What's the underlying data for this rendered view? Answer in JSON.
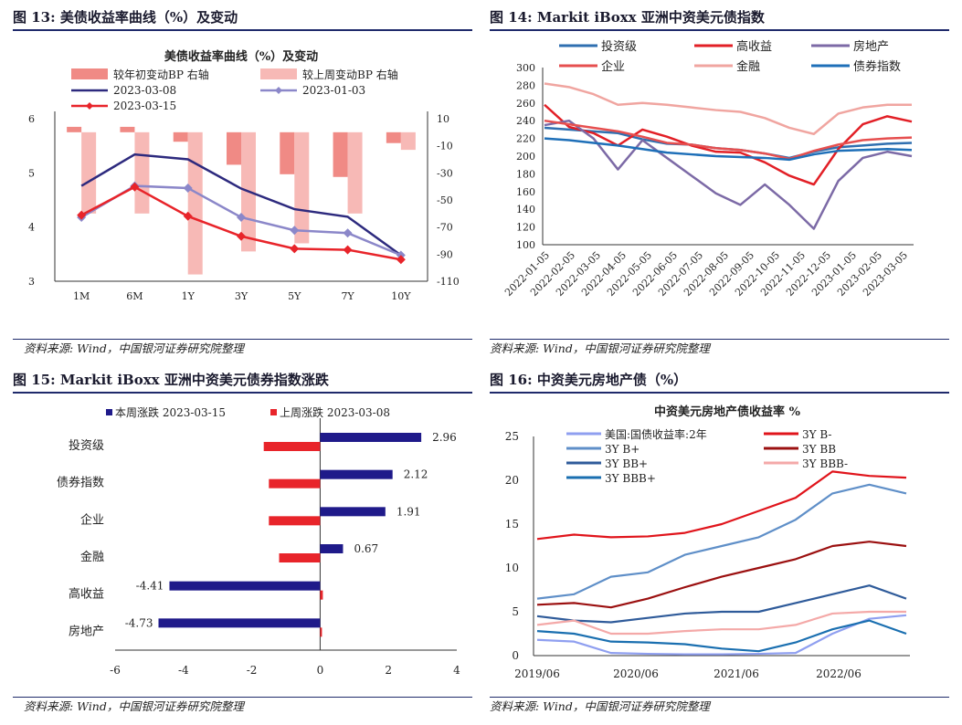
{
  "panels": {
    "p13": {
      "title": "图 13:  美债收益率曲线（%）及变动",
      "source": "资料来源: Wind，中国银河证券研究院整理"
    },
    "p14": {
      "title": "图 14:  Markit iBoxx 亚洲中资美元债指数",
      "source": "资料来源: Wind，中国银河证券研究院整理"
    },
    "p15": {
      "title": "图 15:  Markit iBoxx 亚洲中资美元债券指数涨跌",
      "source": "资料来源: Wind，中国银河证券研究院整理"
    },
    "p16": {
      "title": "图 16:  中资美元房地产债（%）",
      "source": "资料来源: Wind，中国银河证券研究院整理"
    }
  },
  "colors": {
    "header_rule": "#1f2a6b",
    "navy": "#1f1a8a",
    "red": "#e8242a"
  },
  "chart_data": [
    {
      "id": "c13",
      "type": "bar",
      "title": "美债收益率曲线（%）及变动",
      "categories": [
        "1M",
        "6M",
        "1Y",
        "3Y",
        "5Y",
        "7Y",
        "10Y"
      ],
      "ylim_left": [
        3,
        6
      ],
      "yticks_left": [
        "3",
        "4",
        "5",
        "6"
      ],
      "ylim_right": [
        -110,
        10
      ],
      "yticks_right": [
        "10",
        "-10",
        "-30",
        "-50",
        "-70",
        "-90",
        "-110"
      ],
      "bar_series": [
        {
          "name": "较年初变动BP 右轴",
          "color": "#f08a85",
          "values": [
            4,
            4,
            -7,
            -24,
            -31,
            -33,
            -8
          ]
        },
        {
          "name": "较上周变动BP 右轴",
          "color": "#f7b9b6",
          "values": [
            -60,
            -60,
            -105,
            -88,
            -82,
            -60,
            -13
          ]
        }
      ],
      "line_series": [
        {
          "name": "2023-03-08",
          "color": "#2d2a7e",
          "values": [
            4.76,
            5.34,
            5.25,
            4.71,
            4.33,
            4.19,
            3.48
          ]
        },
        {
          "name": "2023-01-03",
          "color": "#8b87c9",
          "values": [
            4.18,
            4.76,
            4.72,
            4.18,
            3.94,
            3.89,
            3.48
          ]
        },
        {
          "name": "2023-03-15",
          "color": "#e8242a",
          "values": [
            4.22,
            4.74,
            4.2,
            3.83,
            3.6,
            3.58,
            3.4
          ]
        }
      ]
    },
    {
      "id": "c14",
      "type": "line",
      "title": "",
      "ylim": [
        100,
        300
      ],
      "yticks": [
        "300",
        "280",
        "260",
        "240",
        "220",
        "200",
        "180",
        "160",
        "140",
        "120",
        "100"
      ],
      "x_ticks": [
        "2022-01-05",
        "2022-02-05",
        "2022-03-05",
        "2022-04-05",
        "2022-05-05",
        "2022-06-05",
        "2022-07-05",
        "2022-08-05",
        "2022-09-05",
        "2022-10-05",
        "2022-11-05",
        "2022-12-05",
        "2023-01-05",
        "2023-02-05",
        "2023-03-05"
      ],
      "series": [
        {
          "name": "投资级",
          "color": "#2f6fb0",
          "values": [
            232,
            230,
            228,
            226,
            219,
            214,
            213,
            209,
            207,
            203,
            198,
            205,
            210,
            212,
            214,
            215
          ]
        },
        {
          "name": "高收益",
          "color": "#e21f26",
          "values": [
            258,
            233,
            226,
            212,
            230,
            222,
            212,
            205,
            204,
            193,
            178,
            168,
            208,
            236,
            245,
            239
          ]
        },
        {
          "name": "房地产",
          "color": "#7c6aa6",
          "values": [
            235,
            240,
            220,
            185,
            218,
            198,
            178,
            158,
            145,
            168,
            145,
            118,
            172,
            198,
            205,
            200
          ]
        },
        {
          "name": "企业",
          "color": "#e64f4f",
          "values": [
            240,
            236,
            232,
            228,
            222,
            215,
            213,
            209,
            207,
            203,
            197,
            206,
            213,
            218,
            220,
            221
          ]
        },
        {
          "name": "金融",
          "color": "#f0a5a0",
          "values": [
            282,
            278,
            270,
            258,
            260,
            258,
            255,
            252,
            250,
            243,
            232,
            225,
            248,
            255,
            258,
            258
          ]
        },
        {
          "name": "债券指数",
          "color": "#1e6fb8",
          "values": [
            220,
            218,
            215,
            212,
            208,
            204,
            202,
            200,
            199,
            198,
            196,
            202,
            206,
            207,
            208,
            207
          ]
        }
      ]
    },
    {
      "id": "c15",
      "type": "bar",
      "orientation": "horizontal",
      "categories": [
        "投资级",
        "债券指数",
        "企业",
        "金融",
        "高收益",
        "房地产"
      ],
      "xlim": [
        -6,
        4
      ],
      "xticks": [
        "-6",
        "-4",
        "-2",
        "0",
        "2",
        "4"
      ],
      "series": [
        {
          "name": "本周涨跌  2023-03-15",
          "color": "#1f1a8a",
          "values": [
            2.96,
            2.12,
            1.91,
            0.67,
            -4.41,
            -4.73
          ],
          "labels": [
            "2.96",
            "2.12",
            "1.91",
            "0.67",
            "-4.41",
            "-4.73"
          ]
        },
        {
          "name": "上周涨跌  2023-03-08",
          "color": "#e8242a",
          "values": [
            -1.65,
            -1.5,
            -1.5,
            -1.2,
            0.08,
            0.03
          ]
        }
      ]
    },
    {
      "id": "c16",
      "type": "line",
      "title": "中资美元房地产债收益率 %",
      "ylim": [
        0,
        25
      ],
      "yticks": [
        "0",
        "5",
        "10",
        "15",
        "20",
        "25"
      ],
      "x_ticks": [
        "2019/06",
        "2020/06",
        "2021/06",
        "2022/06"
      ],
      "series": [
        {
          "name": "美国:国债收益率:2年",
          "color": "#8f9ff0",
          "values": [
            1.8,
            1.6,
            0.3,
            0.2,
            0.15,
            0.15,
            0.2,
            0.3,
            2.5,
            4.2,
            4.6
          ]
        },
        {
          "name": "3Y  B-",
          "color": "#e0141b",
          "values": [
            13.3,
            13.8,
            13.5,
            13.6,
            14.0,
            15.0,
            16.5,
            18.0,
            21.0,
            20.5,
            20.3
          ]
        },
        {
          "name": "3Y  B+",
          "color": "#5f8fc8",
          "values": [
            6.5,
            7.0,
            9.0,
            9.5,
            11.5,
            12.5,
            13.5,
            15.5,
            18.5,
            19.5,
            18.5
          ]
        },
        {
          "name": "3Y  BB",
          "color": "#9b1010",
          "values": [
            5.8,
            6.0,
            5.5,
            6.5,
            7.8,
            9.0,
            10.0,
            11.0,
            12.5,
            13.0,
            12.5
          ]
        },
        {
          "name": "3Y  BB+",
          "color": "#2f5b9a",
          "values": [
            4.5,
            4.0,
            3.8,
            4.3,
            4.8,
            5.0,
            5.0,
            6.0,
            7.0,
            8.0,
            6.5
          ]
        },
        {
          "name": "3Y  BBB-",
          "color": "#f4a9a8",
          "values": [
            3.5,
            4.0,
            2.5,
            2.5,
            2.8,
            3.0,
            3.0,
            3.5,
            4.8,
            5.0,
            5.0
          ]
        },
        {
          "name": "3Y  BBB+",
          "color": "#1a6fb0",
          "values": [
            2.8,
            2.5,
            1.6,
            1.5,
            1.3,
            0.8,
            0.5,
            1.5,
            3.0,
            4.0,
            2.5
          ]
        }
      ]
    }
  ]
}
